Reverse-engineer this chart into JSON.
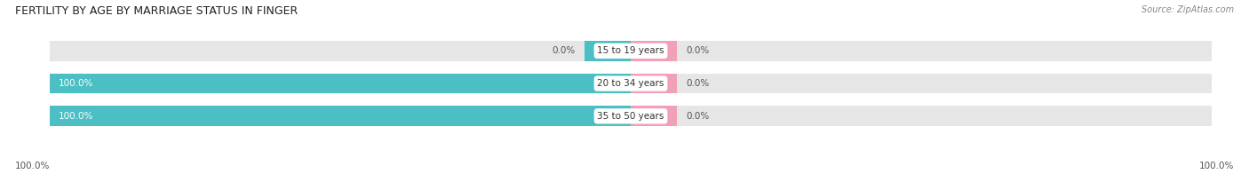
{
  "title": "FERTILITY BY AGE BY MARRIAGE STATUS IN FINGER",
  "source": "Source: ZipAtlas.com",
  "categories": [
    "15 to 19 years",
    "20 to 34 years",
    "35 to 50 years"
  ],
  "married_values": [
    0.0,
    100.0,
    100.0
  ],
  "unmarried_values": [
    0.0,
    0.0,
    0.0
  ],
  "married_color": "#4bbfc3",
  "unmarried_color": "#f2a0b8",
  "bar_bg_color": "#e6e6e6",
  "bar_height": 0.62,
  "figsize": [
    14.06,
    1.96
  ],
  "dpi": 100,
  "title_fontsize": 9,
  "label_fontsize": 7.5,
  "cat_fontsize": 7.5,
  "source_fontsize": 7,
  "axis_label_left": "100.0%",
  "axis_label_right": "100.0%",
  "xlim": 100,
  "small_bar_size": 8.0
}
